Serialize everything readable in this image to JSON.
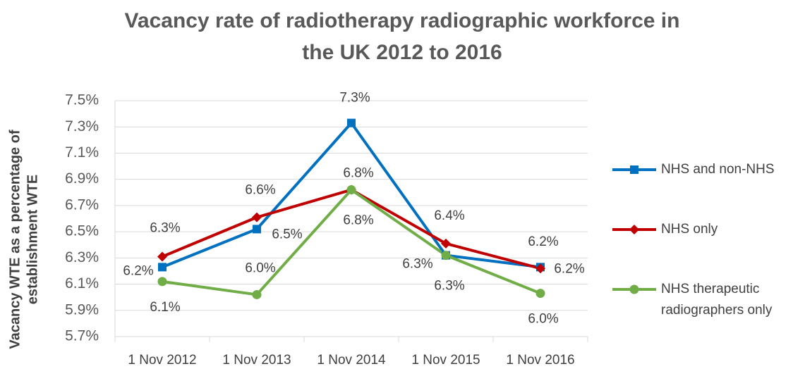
{
  "chart_data": {
    "type": "line",
    "title": [
      "Vacancy rate of radiotherapy radiographic workforce in",
      "the UK 2012 to 2016"
    ],
    "ylabel": [
      "Vacancy WTE as a percentage of",
      "establishment  WTE"
    ],
    "categories": [
      "1 Nov 2012",
      "1 Nov 2013",
      "1 Nov 2014",
      "1 Nov 2015",
      "1 Nov 2016"
    ],
    "series": [
      {
        "name": "NHS and non-NHS",
        "color": "#0070c0",
        "marker": "square",
        "values": [
          6.23,
          6.52,
          7.33,
          6.32,
          6.23
        ],
        "value_labels": [
          "6.2%",
          "6.5%",
          "7.3%",
          "6.3%",
          "6.2%"
        ]
      },
      {
        "name": "NHS only",
        "color": "#c00000",
        "marker": "diamond",
        "values": [
          6.31,
          6.61,
          6.82,
          6.41,
          6.22
        ],
        "value_labels": [
          "6.3%",
          "6.6%",
          "6.8%",
          "6.4%",
          "6.2%"
        ]
      },
      {
        "name": "NHS therapeutic radiographers only",
        "color": "#70ad47",
        "marker": "circle",
        "values": [
          6.12,
          6.02,
          6.82,
          6.32,
          6.03
        ],
        "value_labels": [
          "6.1%",
          "6.0%",
          "6.8%",
          "6.3%",
          "6.0%"
        ]
      }
    ],
    "ylim": [
      5.7,
      7.5
    ],
    "yticks": [
      {
        "value": 5.7,
        "label": "5.7%"
      },
      {
        "value": 5.9,
        "label": "5.9%"
      },
      {
        "value": 6.1,
        "label": "6.1%"
      },
      {
        "value": 6.3,
        "label": "6.3%"
      },
      {
        "value": 6.5,
        "label": "6.5%"
      },
      {
        "value": 6.7,
        "label": "6.7%"
      },
      {
        "value": 6.9,
        "label": "6.9%"
      },
      {
        "value": 7.1,
        "label": "7.1%"
      },
      {
        "value": 7.3,
        "label": "7.3%"
      },
      {
        "value": 7.5,
        "label": "7.5%"
      }
    ],
    "grid": true,
    "legend": "right"
  }
}
